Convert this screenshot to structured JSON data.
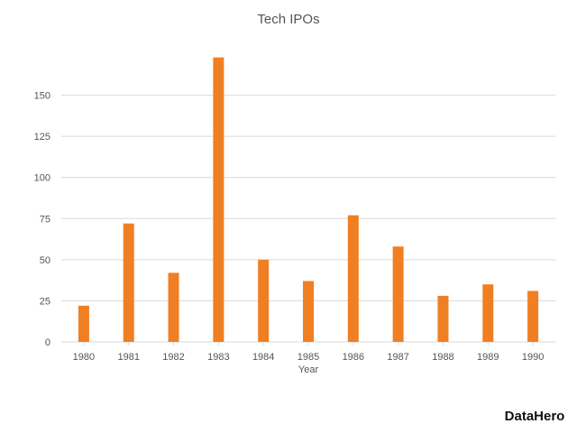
{
  "chart_data": {
    "type": "bar",
    "title": "Tech IPOs",
    "xlabel": "Year",
    "ylabel": "",
    "categories": [
      "1980",
      "1981",
      "1982",
      "1983",
      "1984",
      "1985",
      "1986",
      "1987",
      "1988",
      "1989",
      "1990"
    ],
    "series": [
      {
        "values": [
          22,
          72,
          42,
          173,
          50,
          37,
          77,
          58,
          28,
          35,
          31
        ]
      }
    ],
    "yticks": [
      0,
      25,
      50,
      75,
      100,
      125,
      150
    ],
    "ylim": [
      0,
      175
    ],
    "grid": true,
    "legend": "none",
    "colors": {
      "bar": "#f07f23",
      "grid": "#d9d9d9",
      "text": "#555555"
    }
  },
  "brand": {
    "logo_text": "DataHero"
  }
}
